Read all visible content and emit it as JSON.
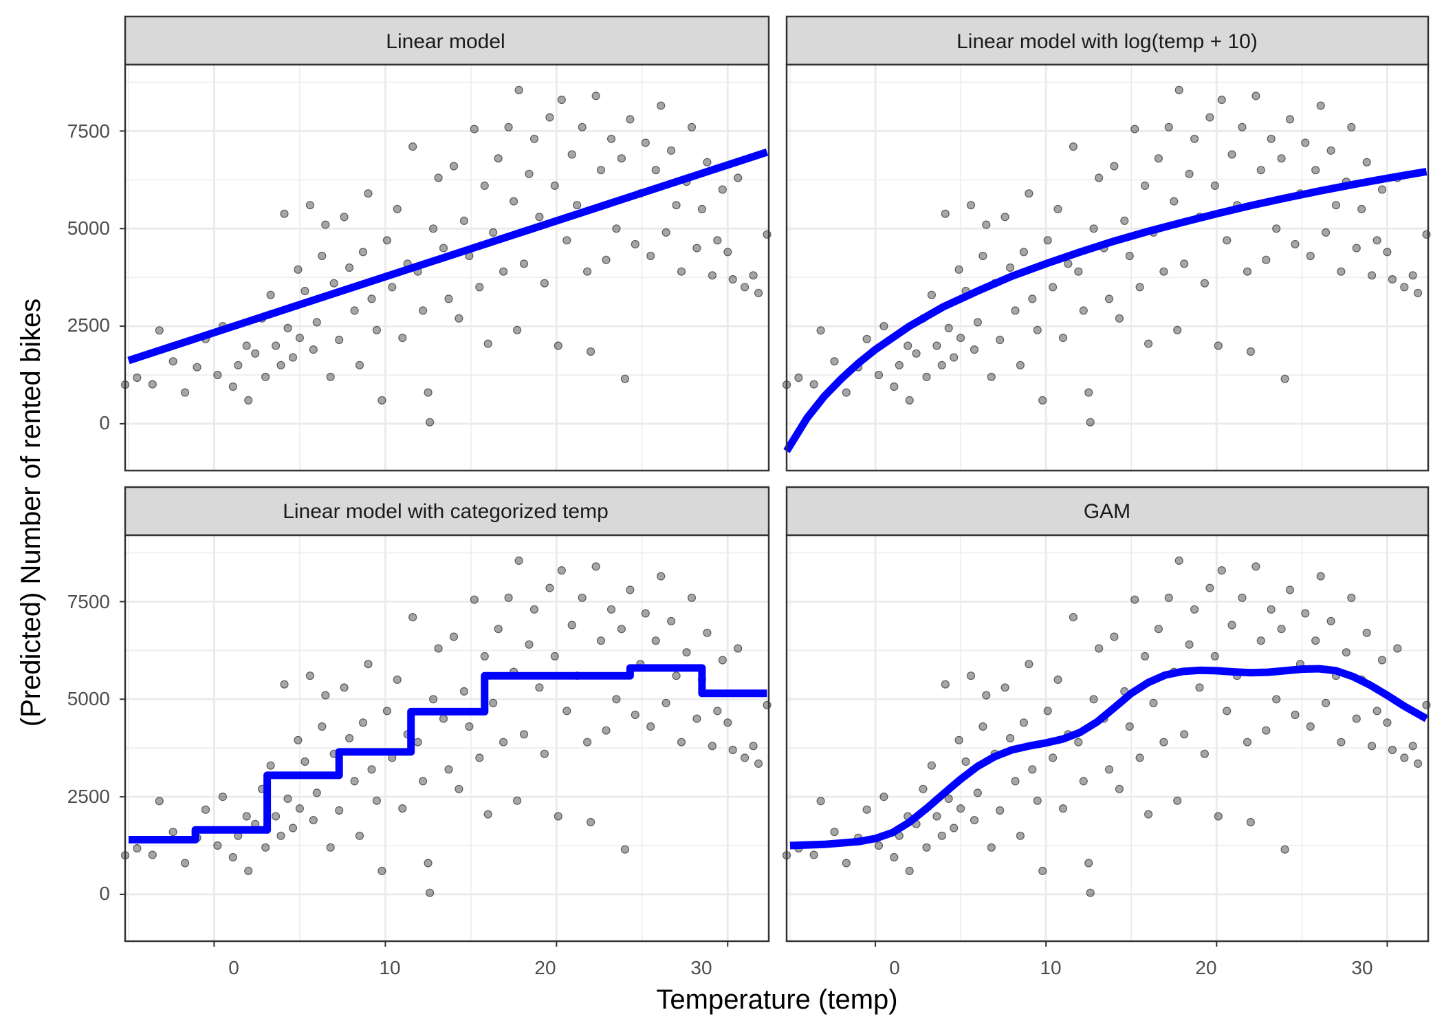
{
  "chart_data": {
    "type": "scatter",
    "layout": "facet-grid-2x2",
    "xlabel": "Temperature (temp)",
    "ylabel": "(Predicted) Number of rented bikes",
    "xlim": [
      -5.2,
      32.4
    ],
    "ylim": [
      -1200,
      9200
    ],
    "x_ticks": [
      0,
      10,
      20,
      30
    ],
    "y_ticks": [
      0,
      2500,
      5000,
      7500
    ],
    "x_tick_labels": [
      "0",
      "10",
      "20",
      "30"
    ],
    "y_tick_labels": [
      "0",
      "2500",
      "5000",
      "7500"
    ],
    "grid": true,
    "colors": {
      "points": "#000000",
      "point_opacity": 0.35,
      "fit_line": "#0000ff",
      "strip_bg": "#d9d9d9",
      "grid": "#ebebeb",
      "panel_border": "#333333"
    },
    "observed_points": [
      [
        -5.2,
        1000
      ],
      [
        -4.5,
        1180
      ],
      [
        -3.6,
        1010
      ],
      [
        -3.2,
        2390
      ],
      [
        -2.4,
        1600
      ],
      [
        -1.7,
        800
      ],
      [
        -1.0,
        1450
      ],
      [
        -0.5,
        2170
      ],
      [
        0.2,
        1250
      ],
      [
        0.5,
        2500
      ],
      [
        1.1,
        950
      ],
      [
        1.4,
        1500
      ],
      [
        1.9,
        2000
      ],
      [
        2.0,
        600
      ],
      [
        2.4,
        1800
      ],
      [
        2.8,
        2700
      ],
      [
        3.0,
        1200
      ],
      [
        3.3,
        3300
      ],
      [
        3.6,
        2000
      ],
      [
        3.9,
        1500
      ],
      [
        4.1,
        5380
      ],
      [
        4.3,
        2450
      ],
      [
        4.6,
        1700
      ],
      [
        4.9,
        3950
      ],
      [
        5.0,
        2200
      ],
      [
        5.3,
        3400
      ],
      [
        5.6,
        5600
      ],
      [
        5.8,
        1900
      ],
      [
        6.0,
        2600
      ],
      [
        6.3,
        4300
      ],
      [
        6.5,
        5100
      ],
      [
        6.8,
        1200
      ],
      [
        7.0,
        3600
      ],
      [
        7.3,
        2150
      ],
      [
        7.6,
        5300
      ],
      [
        7.9,
        4000
      ],
      [
        8.2,
        2900
      ],
      [
        8.5,
        1500
      ],
      [
        8.7,
        4400
      ],
      [
        9.0,
        5900
      ],
      [
        9.2,
        3200
      ],
      [
        9.5,
        2400
      ],
      [
        9.8,
        600
      ],
      [
        10.1,
        4700
      ],
      [
        10.4,
        3500
      ],
      [
        10.7,
        5500
      ],
      [
        11.0,
        2200
      ],
      [
        11.3,
        4100
      ],
      [
        11.6,
        7100
      ],
      [
        11.9,
        3900
      ],
      [
        12.2,
        2900
      ],
      [
        12.5,
        800
      ],
      [
        12.6,
        40
      ],
      [
        12.8,
        5000
      ],
      [
        13.1,
        6300
      ],
      [
        13.4,
        4500
      ],
      [
        13.7,
        3200
      ],
      [
        14.0,
        6600
      ],
      [
        14.3,
        2700
      ],
      [
        14.6,
        5200
      ],
      [
        14.9,
        4300
      ],
      [
        15.2,
        7550
      ],
      [
        15.5,
        3500
      ],
      [
        15.8,
        6100
      ],
      [
        16.0,
        2050
      ],
      [
        16.3,
        4900
      ],
      [
        16.6,
        6800
      ],
      [
        16.9,
        3900
      ],
      [
        17.2,
        7600
      ],
      [
        17.5,
        5700
      ],
      [
        17.7,
        2400
      ],
      [
        17.8,
        8550
      ],
      [
        18.1,
        4100
      ],
      [
        18.4,
        6400
      ],
      [
        18.7,
        7300
      ],
      [
        19.0,
        5300
      ],
      [
        19.3,
        3600
      ],
      [
        19.6,
        7850
      ],
      [
        19.9,
        6100
      ],
      [
        20.1,
        2000
      ],
      [
        20.3,
        8300
      ],
      [
        20.6,
        4700
      ],
      [
        20.9,
        6900
      ],
      [
        21.2,
        5600
      ],
      [
        21.5,
        7600
      ],
      [
        21.8,
        3900
      ],
      [
        22.0,
        1850
      ],
      [
        22.3,
        8400
      ],
      [
        22.6,
        6500
      ],
      [
        22.9,
        4200
      ],
      [
        23.2,
        7300
      ],
      [
        23.5,
        5000
      ],
      [
        23.8,
        6800
      ],
      [
        24.0,
        1150
      ],
      [
        24.3,
        7800
      ],
      [
        24.6,
        4600
      ],
      [
        24.9,
        5900
      ],
      [
        25.2,
        7200
      ],
      [
        25.5,
        4300
      ],
      [
        25.8,
        6500
      ],
      [
        26.1,
        8150
      ],
      [
        26.4,
        4900
      ],
      [
        26.7,
        7000
      ],
      [
        27.0,
        5600
      ],
      [
        27.3,
        3900
      ],
      [
        27.6,
        6200
      ],
      [
        27.9,
        7600
      ],
      [
        28.2,
        4500
      ],
      [
        28.5,
        5500
      ],
      [
        28.8,
        6700
      ],
      [
        29.1,
        3800
      ],
      [
        29.4,
        4700
      ],
      [
        29.7,
        6000
      ],
      [
        30.0,
        4400
      ],
      [
        30.3,
        3700
      ],
      [
        30.6,
        6300
      ],
      [
        31.0,
        3500
      ],
      [
        31.5,
        3800
      ],
      [
        31.8,
        3350
      ],
      [
        32.3,
        4850
      ]
    ],
    "panels": [
      {
        "title": "Linear model",
        "fit_type": "line",
        "fit": [
          [
            -5.0,
            1620
          ],
          [
            32.3,
            6960
          ]
        ]
      },
      {
        "title": "Linear model with log(temp + 10)",
        "fit_type": "line",
        "fit": [
          [
            -5.2,
            -700
          ],
          [
            -4.0,
            150
          ],
          [
            -3.0,
            700
          ],
          [
            -2.0,
            1150
          ],
          [
            -1.0,
            1550
          ],
          [
            0.0,
            1900
          ],
          [
            2.0,
            2500
          ],
          [
            4.0,
            3000
          ],
          [
            6.0,
            3400
          ],
          [
            8.0,
            3780
          ],
          [
            10.0,
            4100
          ],
          [
            12.0,
            4400
          ],
          [
            14.0,
            4680
          ],
          [
            16.0,
            4930
          ],
          [
            18.0,
            5160
          ],
          [
            20.0,
            5380
          ],
          [
            22.0,
            5590
          ],
          [
            24.0,
            5780
          ],
          [
            26.0,
            5960
          ],
          [
            28.0,
            6130
          ],
          [
            30.0,
            6290
          ],
          [
            32.3,
            6460
          ]
        ]
      },
      {
        "title": "Linear model with categorized temp",
        "fit_type": "step",
        "fit": [
          [
            -5.0,
            1400
          ],
          [
            -1.1,
            1400
          ],
          [
            -1.1,
            1650
          ],
          [
            3.1,
            1650
          ],
          [
            3.1,
            3050
          ],
          [
            7.3,
            3050
          ],
          [
            7.3,
            3650
          ],
          [
            11.5,
            3650
          ],
          [
            11.5,
            4680
          ],
          [
            15.8,
            4680
          ],
          [
            15.8,
            5600
          ],
          [
            24.3,
            5600
          ],
          [
            24.3,
            5800
          ],
          [
            28.5,
            5800
          ],
          [
            28.5,
            5150
          ],
          [
            32.3,
            5150
          ]
        ]
      },
      {
        "title": "GAM",
        "fit_type": "line",
        "fit": [
          [
            -5.0,
            1250
          ],
          [
            -3.0,
            1280
          ],
          [
            -1.0,
            1350
          ],
          [
            0.0,
            1430
          ],
          [
            1.0,
            1580
          ],
          [
            2.0,
            1850
          ],
          [
            3.0,
            2200
          ],
          [
            4.0,
            2580
          ],
          [
            5.0,
            2950
          ],
          [
            6.0,
            3280
          ],
          [
            7.0,
            3530
          ],
          [
            8.0,
            3700
          ],
          [
            9.0,
            3800
          ],
          [
            10.0,
            3880
          ],
          [
            11.0,
            3980
          ],
          [
            12.0,
            4150
          ],
          [
            13.0,
            4420
          ],
          [
            14.0,
            4780
          ],
          [
            15.0,
            5150
          ],
          [
            16.0,
            5430
          ],
          [
            17.0,
            5620
          ],
          [
            18.0,
            5710
          ],
          [
            19.0,
            5740
          ],
          [
            20.0,
            5730
          ],
          [
            21.0,
            5700
          ],
          [
            22.0,
            5680
          ],
          [
            23.0,
            5690
          ],
          [
            24.0,
            5730
          ],
          [
            25.0,
            5770
          ],
          [
            26.0,
            5780
          ],
          [
            27.0,
            5730
          ],
          [
            28.0,
            5580
          ],
          [
            29.0,
            5360
          ],
          [
            30.0,
            5100
          ],
          [
            31.0,
            4820
          ],
          [
            32.3,
            4500
          ]
        ]
      }
    ]
  }
}
